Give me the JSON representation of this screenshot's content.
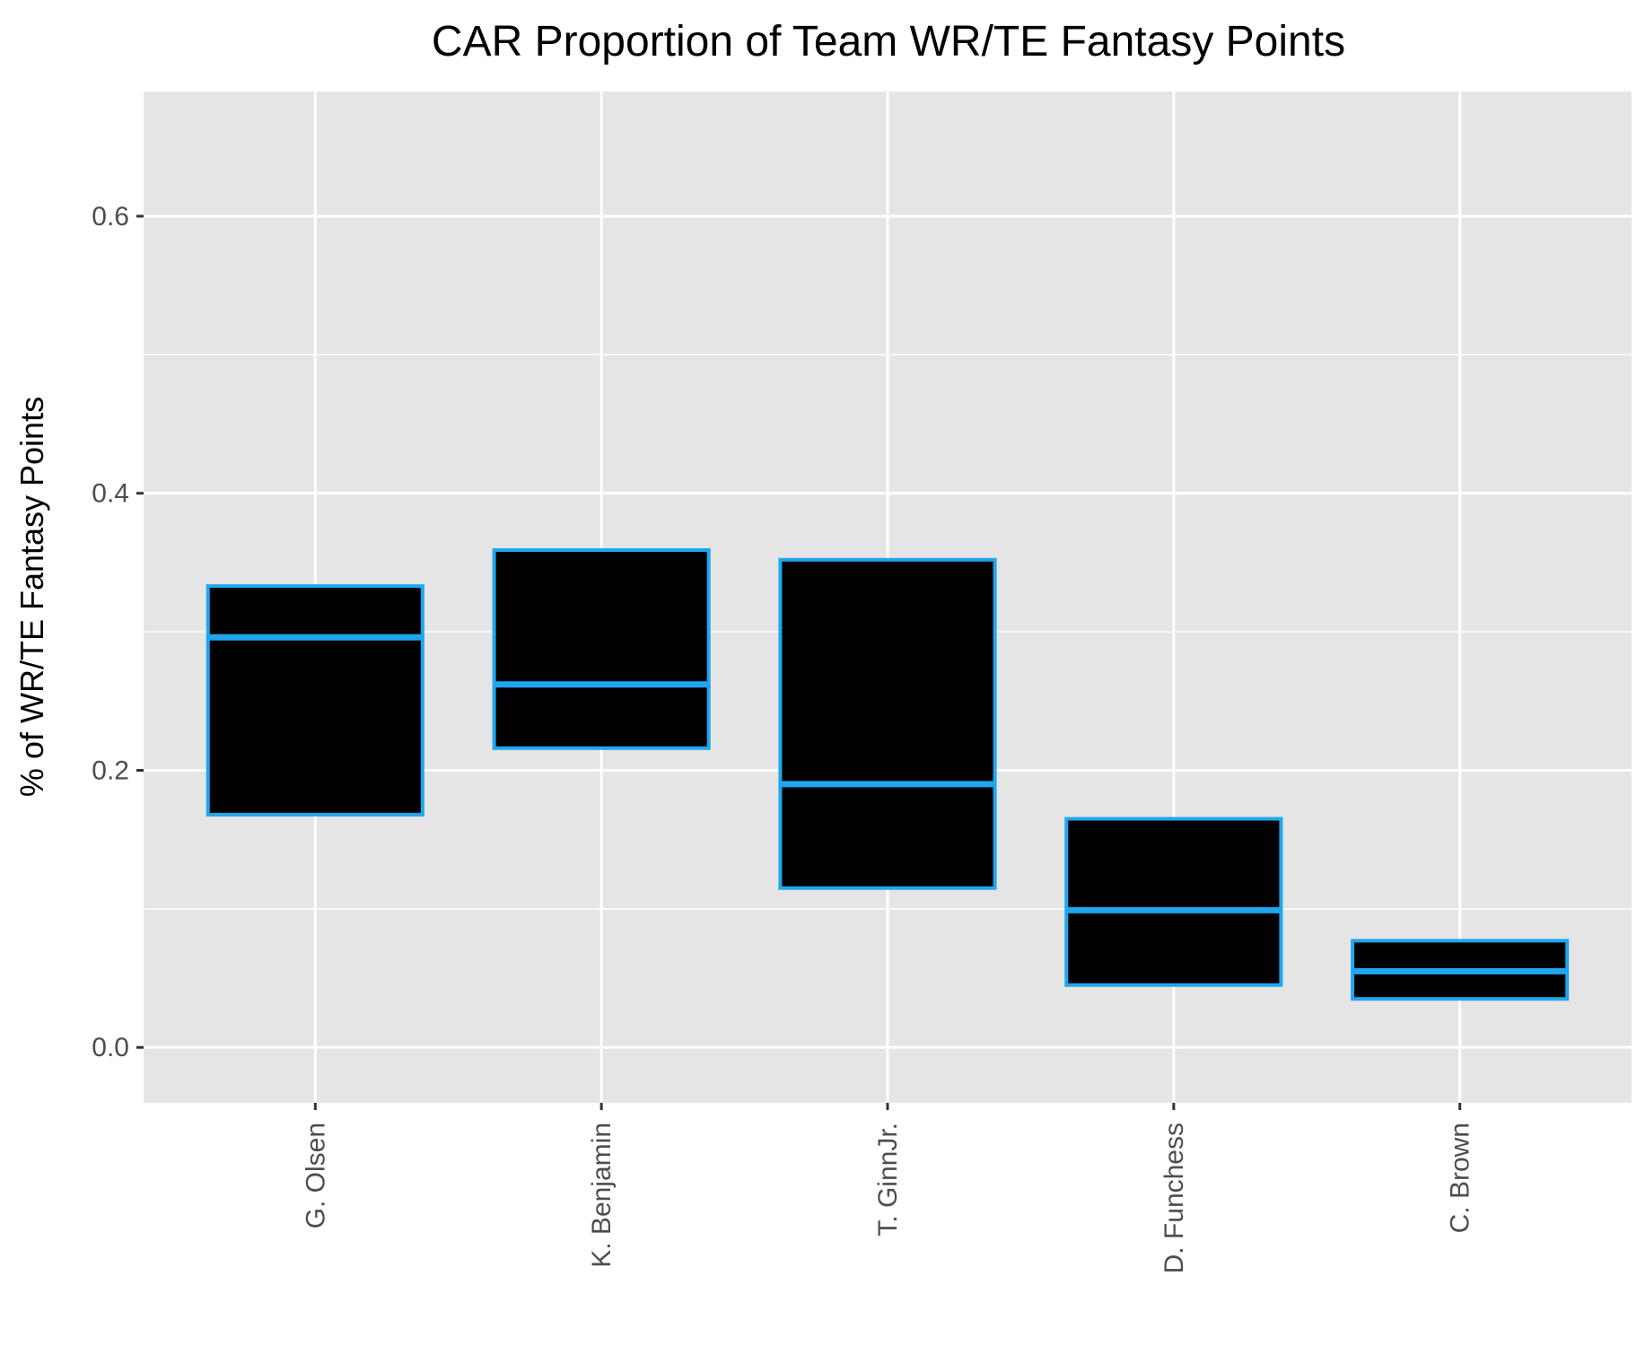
{
  "chart_data": {
    "type": "boxplot",
    "title": "CAR Proportion of Team WR/TE Fantasy Points",
    "xlabel": "",
    "ylabel": "% of WR/TE Fantasy Points",
    "ylim": [
      -0.04,
      0.69
    ],
    "yticks": [
      0.0,
      0.2,
      0.4,
      0.6
    ],
    "ytick_labels": [
      "0.0",
      "0.2",
      "0.4",
      "0.6"
    ],
    "categories": [
      "G. Olsen",
      "K. Benjamin",
      "T. GinnJr.",
      "D. Funchess",
      "C. Brown"
    ],
    "boxes": [
      {
        "category": "G. Olsen",
        "q1": 0.168,
        "median": 0.296,
        "q3": 0.333
      },
      {
        "category": "K. Benjamin",
        "q1": 0.216,
        "median": 0.262,
        "q3": 0.359
      },
      {
        "category": "T. GinnJr.",
        "q1": 0.115,
        "median": 0.19,
        "q3": 0.352
      },
      {
        "category": "D. Funchess",
        "q1": 0.045,
        "median": 0.099,
        "q3": 0.165
      },
      {
        "category": "C. Brown",
        "q1": 0.035,
        "median": 0.055,
        "q3": 0.077
      }
    ],
    "grid": true,
    "colors": {
      "panel": "#e5e5e5",
      "grid": "#ffffff",
      "box_fill": "#000000",
      "box_line": "#1ea7f0",
      "axis_tick": "#333333"
    }
  }
}
